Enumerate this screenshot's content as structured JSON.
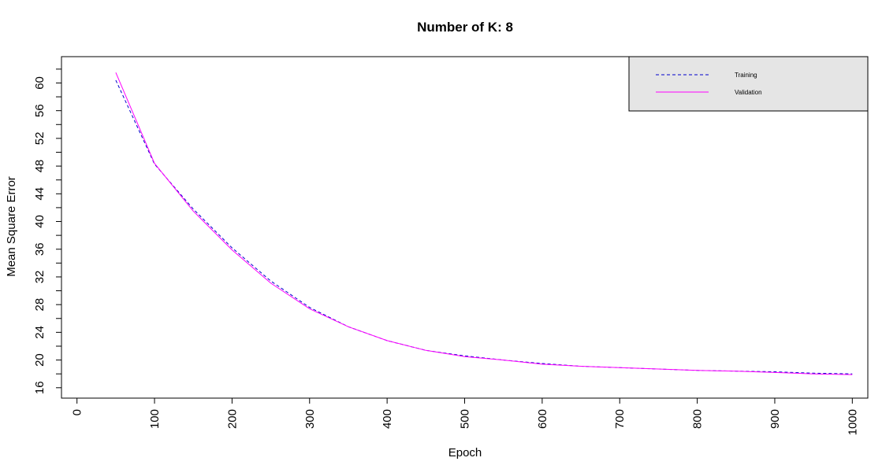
{
  "chart_data": {
    "type": "line",
    "title": "Number of K: 8",
    "xlabel": "Epoch",
    "ylabel": "Mean Square Error",
    "xlim": [
      -20,
      1020
    ],
    "ylim": [
      14.5,
      63.8
    ],
    "xticks": [
      0,
      100,
      200,
      300,
      400,
      500,
      600,
      700,
      800,
      900,
      1000
    ],
    "yticks_labeled": [
      16,
      20,
      24,
      28,
      32,
      36,
      40,
      44,
      48,
      52,
      56,
      60
    ],
    "yticks_all": [
      16,
      18,
      20,
      22,
      24,
      26,
      28,
      30,
      32,
      34,
      36,
      38,
      40,
      42,
      44,
      46,
      48,
      50,
      52,
      54,
      56,
      58,
      60,
      62
    ],
    "grid": false,
    "legend_position": "top-right",
    "legend_bg": "#e5e5e5",
    "x": [
      50,
      100,
      150,
      200,
      250,
      300,
      350,
      400,
      450,
      500,
      550,
      600,
      650,
      700,
      750,
      800,
      850,
      900,
      950,
      1000
    ],
    "series": [
      {
        "name": "Training",
        "color": "#0000cd",
        "dash": "dashed",
        "values": [
          60.4,
          48.3,
          41.8,
          36.2,
          31.4,
          27.6,
          24.8,
          22.8,
          21.4,
          20.6,
          20.0,
          19.5,
          19.1,
          18.9,
          18.7,
          18.5,
          18.4,
          18.3,
          18.1,
          18.0
        ]
      },
      {
        "name": "Validation",
        "color": "#ff00ff",
        "dash": "solid",
        "values": [
          61.5,
          48.4,
          41.5,
          35.9,
          31.1,
          27.4,
          24.8,
          22.8,
          21.4,
          20.5,
          20.0,
          19.4,
          19.1,
          18.9,
          18.7,
          18.5,
          18.4,
          18.2,
          18.0,
          17.9
        ]
      }
    ]
  }
}
